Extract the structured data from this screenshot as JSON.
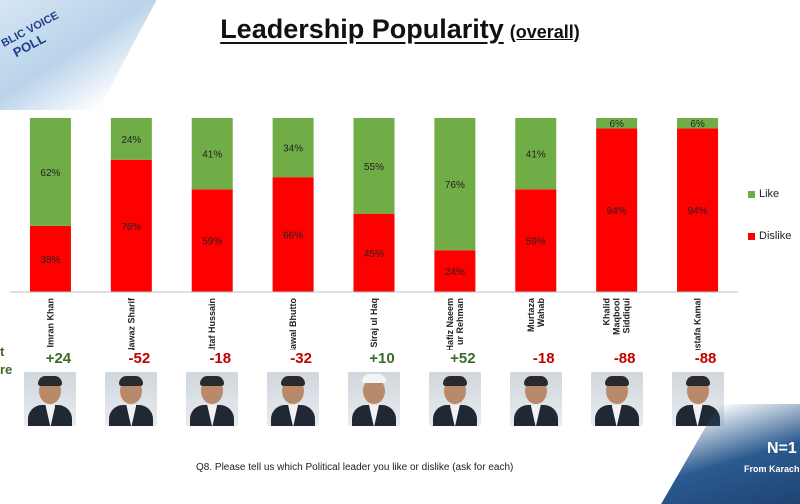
{
  "logo": {
    "line1": "BLIC VOICE",
    "line2": "POLL"
  },
  "title": {
    "main": "Leadership Popularity",
    "sub": "(overall)"
  },
  "side_labels": [
    "t",
    "re"
  ],
  "chart_data": {
    "type": "bar",
    "stacked": true,
    "title": "Leadership Popularity (overall)",
    "categories": [
      "Imran Khan",
      "Nawaz Sharif",
      "Altaf Hussain",
      "Bilawal Bhutto",
      "Siraj ul Haq",
      "Hafiz Naeem ur Rehman",
      "Murtaza Wahab",
      "Khalid Maqbool Siddiqui",
      "Mustafa Kamal"
    ],
    "category_label_lines": [
      [
        "Imran Khan"
      ],
      [
        "Nawaz Sharif"
      ],
      [
        "Altaf Hussain"
      ],
      [
        "Bilawal Bhutto"
      ],
      [
        "Siraj ul Haq"
      ],
      [
        "Hafiz Naeem",
        "ur Rehman"
      ],
      [
        "Murtaza",
        "Wahab"
      ],
      [
        "Khalid",
        "Maqbool",
        "Siddiqui"
      ],
      [
        "Mustafa Kamal"
      ]
    ],
    "series": [
      {
        "name": "Dislike",
        "color": "#ff0000",
        "values": [
          38,
          76,
          59,
          66,
          45,
          24,
          59,
          94,
          94
        ]
      },
      {
        "name": "Like",
        "color": "#70ad47",
        "values": [
          62,
          24,
          41,
          34,
          55,
          76,
          41,
          6,
          6
        ]
      }
    ],
    "net_scores": [
      "+24",
      "-52",
      "-18",
      "-32",
      "+10",
      "+52",
      "-18",
      "-88",
      "-88"
    ],
    "ylim": [
      0,
      100
    ],
    "value_suffix": "%",
    "legend": {
      "position": "right",
      "items": [
        "Like",
        "Dislike"
      ]
    },
    "colors": {
      "positive": "#3c6a2a",
      "negative": "#c00000"
    }
  },
  "footer": {
    "question": "Q8. Please tell us which Political leader you like or dislike (ask for each)",
    "sample_size": "N=1",
    "source": "From Karach"
  }
}
